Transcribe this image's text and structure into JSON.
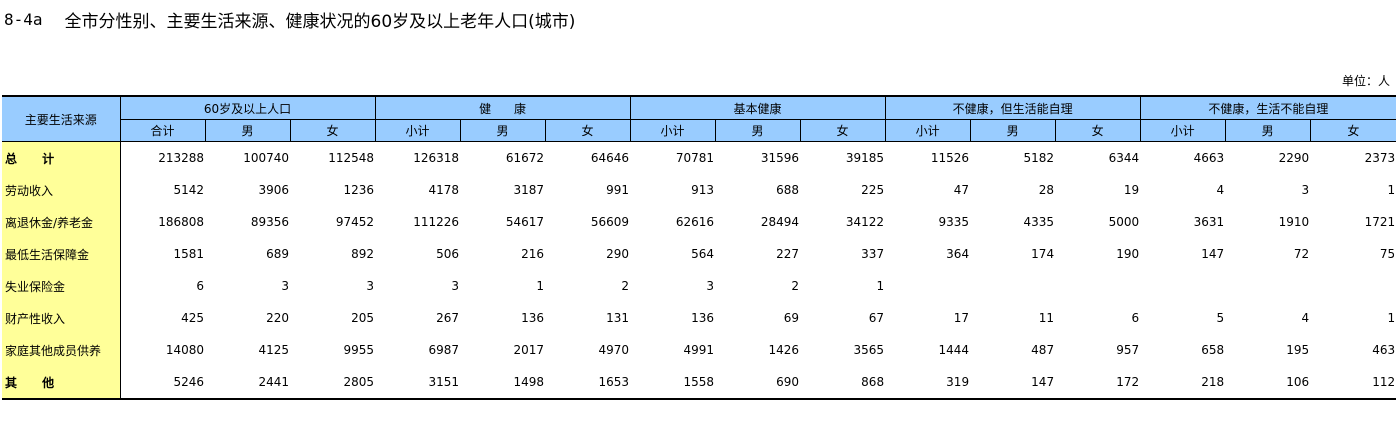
{
  "title": {
    "code": "8-4a",
    "text": "全市分性别、主要生活来源、健康状况的60岁及以上老年人口(城市)"
  },
  "unit_label": "单位：人",
  "table": {
    "row_header_label": "主要生活来源",
    "groups": [
      "60岁及以上人口",
      "健      康",
      "基本健康",
      "不健康，但生活能自理",
      "不健康，生活不能自理"
    ],
    "subheaders": [
      [
        "合计",
        "男",
        "女"
      ],
      [
        "小计",
        "男",
        "女"
      ],
      [
        "小计",
        "男",
        "女"
      ],
      [
        "小计",
        "男",
        "女"
      ],
      [
        "小计",
        "男",
        "女"
      ]
    ],
    "rows": [
      {
        "label": "总      计",
        "cells": [
          "213288",
          "100740",
          "112548",
          "126318",
          "61672",
          "64646",
          "70781",
          "31596",
          "39185",
          "11526",
          "5182",
          "6344",
          "4663",
          "2290",
          "2373"
        ]
      },
      {
        "label": "劳动收入",
        "cells": [
          "5142",
          "3906",
          "1236",
          "4178",
          "3187",
          "991",
          "913",
          "688",
          "225",
          "47",
          "28",
          "19",
          "4",
          "3",
          "1"
        ]
      },
      {
        "label": "离退休金/养老金",
        "cells": [
          "186808",
          "89356",
          "97452",
          "111226",
          "54617",
          "56609",
          "62616",
          "28494",
          "34122",
          "9335",
          "4335",
          "5000",
          "3631",
          "1910",
          "1721"
        ]
      },
      {
        "label": "最低生活保障金",
        "cells": [
          "1581",
          "689",
          "892",
          "506",
          "216",
          "290",
          "564",
          "227",
          "337",
          "364",
          "174",
          "190",
          "147",
          "72",
          "75"
        ]
      },
      {
        "label": "失业保险金",
        "cells": [
          "6",
          "3",
          "3",
          "3",
          "1",
          "2",
          "3",
          "2",
          "1",
          "",
          "",
          "",
          "",
          "",
          ""
        ]
      },
      {
        "label": "财产性收入",
        "cells": [
          "425",
          "220",
          "205",
          "267",
          "136",
          "131",
          "136",
          "69",
          "67",
          "17",
          "11",
          "6",
          "5",
          "4",
          "1"
        ]
      },
      {
        "label": "家庭其他成员供养",
        "cells": [
          "14080",
          "4125",
          "9955",
          "6987",
          "2017",
          "4970",
          "4991",
          "1426",
          "3565",
          "1444",
          "487",
          "957",
          "658",
          "195",
          "463"
        ]
      },
      {
        "label": "其      他",
        "cells": [
          "5246",
          "2441",
          "2805",
          "3151",
          "1498",
          "1653",
          "1558",
          "690",
          "868",
          "319",
          "147",
          "172",
          "218",
          "106",
          "112"
        ]
      }
    ]
  }
}
